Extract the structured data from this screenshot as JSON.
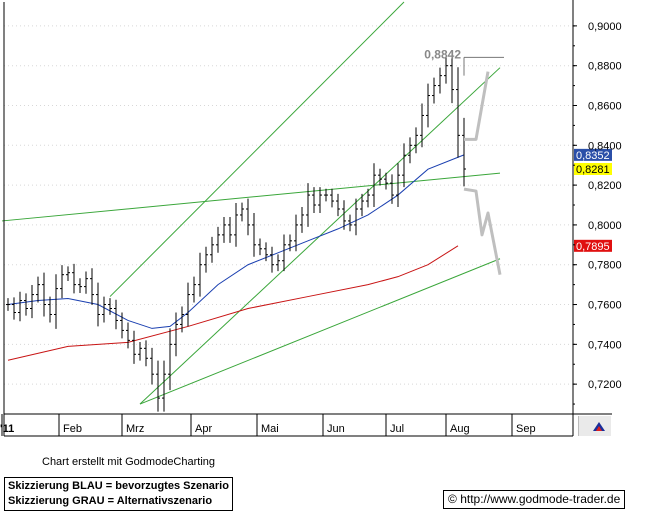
{
  "chart_data": {
    "type": "ohlc",
    "x_labels": [
      "'11",
      "Feb",
      "Mrz",
      "Apr",
      "Mai",
      "Jun",
      "Jul",
      "Aug",
      "Sep"
    ],
    "y_ticks": [
      "0,9000",
      "0,8800",
      "0,8600",
      "0,8400",
      "0,8200",
      "0,8000",
      "0,7800",
      "0,7600",
      "0,7400",
      "0,7200"
    ],
    "ylim": [
      0.705,
      0.912
    ],
    "high_annotation": "0,8842",
    "price_tags": [
      {
        "text": "0,8352",
        "value": 0.8352,
        "bg": "#2b4fa8",
        "fg": "#ffffff"
      },
      {
        "text": "0,8281",
        "value": 0.8281,
        "bg": "#ffff00",
        "fg": "#000000"
      },
      {
        "text": "0,7895",
        "value": 0.7895,
        "bg": "#e01010",
        "fg": "#ffffff"
      }
    ],
    "closes": [
      0.76,
      0.756,
      0.762,
      0.758,
      0.765,
      0.77,
      0.76,
      0.755,
      0.768,
      0.775,
      0.776,
      0.77,
      0.769,
      0.773,
      0.765,
      0.755,
      0.76,
      0.758,
      0.752,
      0.747,
      0.742,
      0.735,
      0.738,
      0.733,
      0.725,
      0.713,
      0.725,
      0.74,
      0.75,
      0.755,
      0.765,
      0.77,
      0.78,
      0.785,
      0.79,
      0.795,
      0.8,
      0.795,
      0.805,
      0.808,
      0.8,
      0.79,
      0.788,
      0.785,
      0.78,
      0.782,
      0.79,
      0.792,
      0.8,
      0.805,
      0.815,
      0.81,
      0.815,
      0.815,
      0.812,
      0.808,
      0.802,
      0.8,
      0.808,
      0.812,
      0.815,
      0.825,
      0.823,
      0.821,
      0.815,
      0.825,
      0.835,
      0.84,
      0.845,
      0.855,
      0.865,
      0.87,
      0.875,
      0.88,
      0.868,
      0.845,
      0.8281
    ],
    "series": [
      {
        "name": "blue",
        "color": "#1a3fb0",
        "x_index": [
          0,
          5,
          10,
          15,
          20,
          24,
          27,
          30,
          35,
          40,
          45,
          50,
          55,
          60,
          65,
          70,
          75,
          76
        ],
        "values": [
          0.76,
          0.762,
          0.763,
          0.76,
          0.752,
          0.748,
          0.749,
          0.756,
          0.77,
          0.78,
          0.786,
          0.792,
          0.798,
          0.805,
          0.815,
          0.828,
          0.834,
          0.8352
        ]
      },
      {
        "name": "red",
        "color": "#c81414",
        "x_index": [
          0,
          10,
          20,
          30,
          40,
          50,
          60,
          65,
          70,
          75
        ],
        "values": [
          0.732,
          0.739,
          0.741,
          0.749,
          0.758,
          0.764,
          0.77,
          0.774,
          0.78,
          0.7895
        ]
      }
    ],
    "trendlines": [
      {
        "color": "#3aa63a",
        "from": [
          -1,
          0.802
        ],
        "to": [
          82,
          0.826
        ]
      },
      {
        "color": "#3aa63a",
        "from": [
          17,
          0.764
        ],
        "to": [
          66,
          0.912
        ]
      },
      {
        "color": "#3aa63a",
        "from": [
          22,
          0.71
        ],
        "to": [
          82,
          0.879
        ]
      },
      {
        "color": "#3aa63a",
        "from": [
          22,
          0.71
        ],
        "to": [
          82,
          0.783
        ]
      }
    ],
    "scenarios": [
      {
        "name": "blue-scenario",
        "color": "#bfbfbf",
        "points": [
          [
            76,
            0.843
          ],
          [
            78,
            0.843
          ],
          [
            80,
            0.877
          ]
        ]
      },
      {
        "name": "grey-scenario",
        "color": "#bfbfbf",
        "points": [
          [
            76,
            0.818
          ],
          [
            78,
            0.817
          ],
          [
            79,
            0.795
          ],
          [
            80,
            0.806
          ],
          [
            82,
            0.775
          ]
        ]
      }
    ],
    "high_line": {
      "value": 0.8842,
      "from": 76,
      "to": 82
    }
  },
  "caption": "Chart erstellt mit GodmodeCharting",
  "legend": {
    "line1": "Skizzierung BLAU = bevorzugtes Szenario",
    "line2": "Skizzierung GRAU = Alternativszenario"
  },
  "url": "http://www.godmode-trader.de",
  "copyright_symbol": "©"
}
